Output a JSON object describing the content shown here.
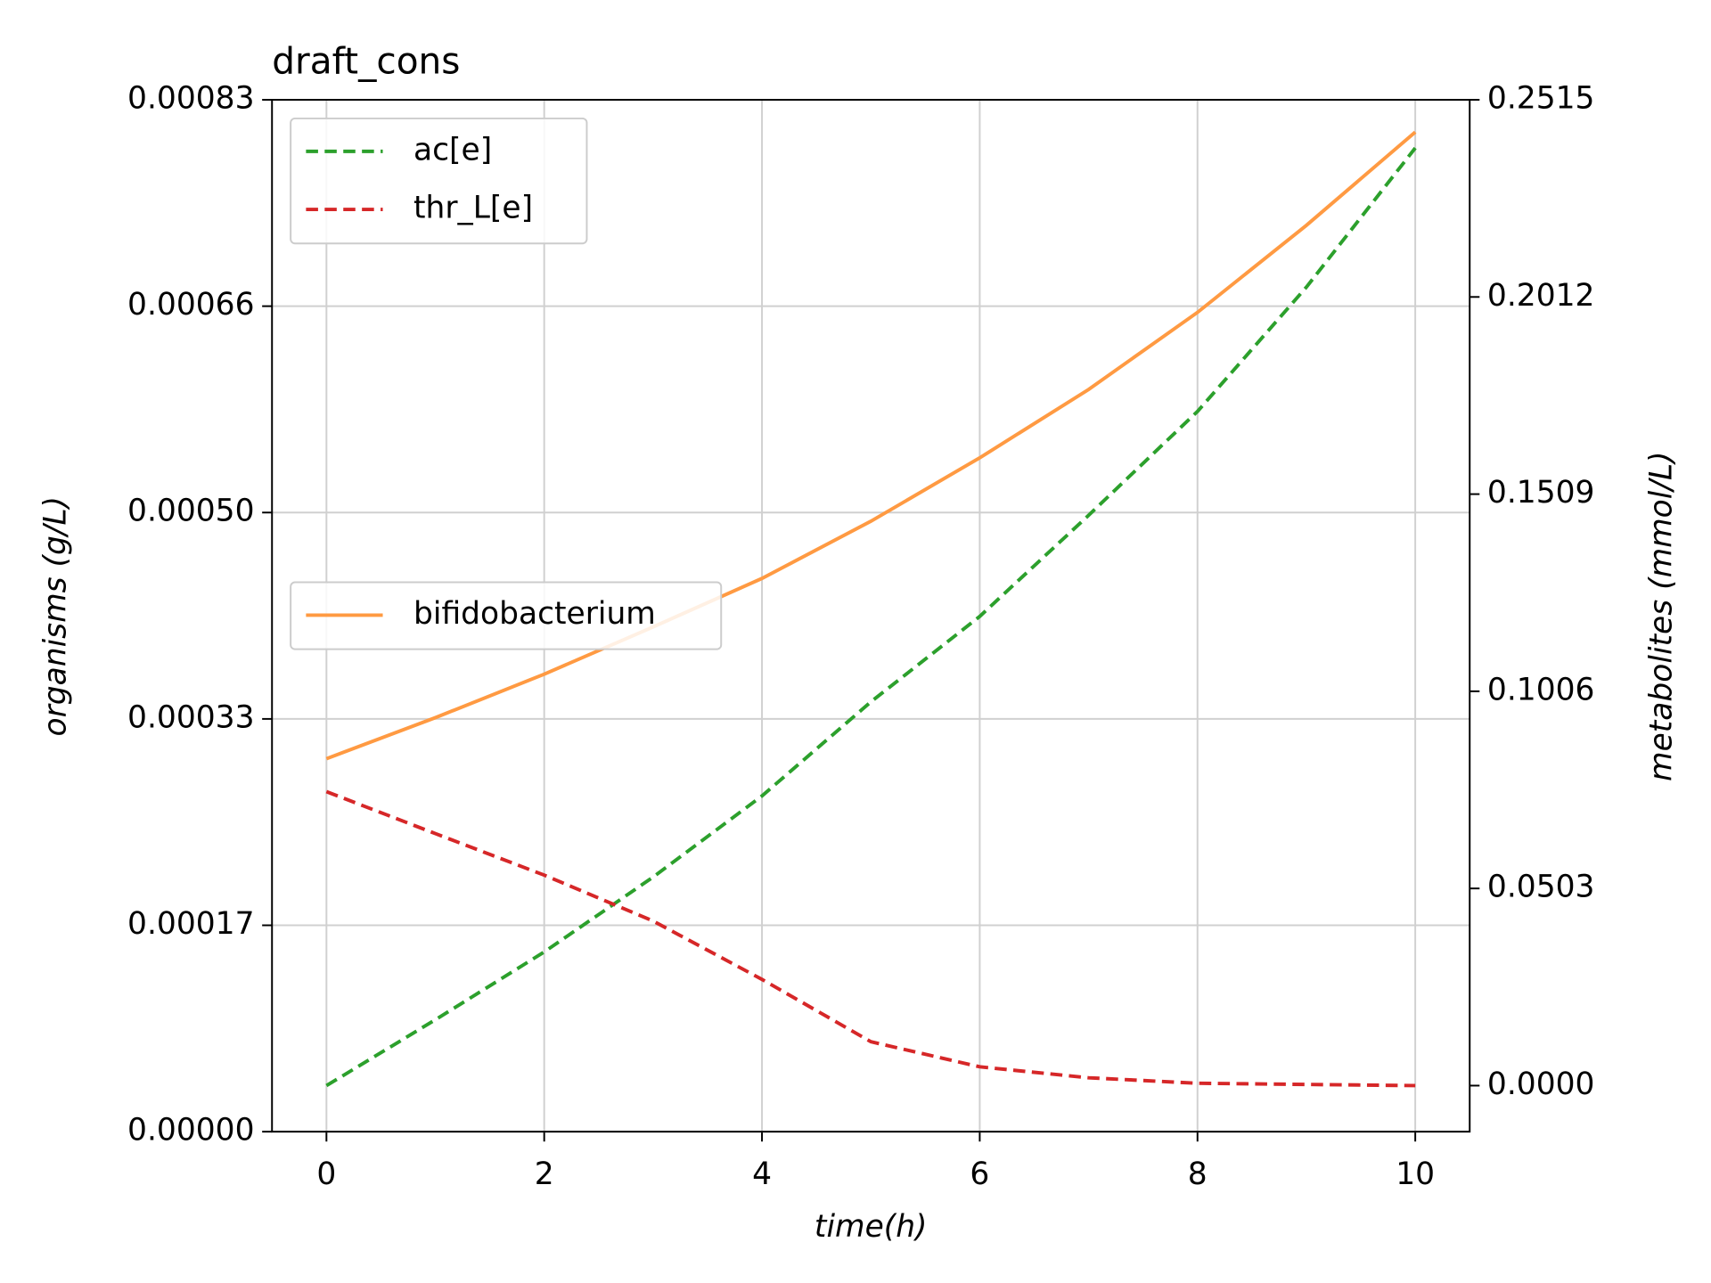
{
  "chart_data": {
    "type": "line",
    "title": "draft_cons",
    "x_label": "time(h)",
    "y_label": "organisms (g/L)",
    "y2_label": "metabolites (mmol/L)",
    "x": [
      0,
      1,
      2,
      3,
      4,
      5,
      6,
      7,
      8,
      9,
      10
    ],
    "xlim": [
      -0.5,
      10.5
    ],
    "xticks": [
      0,
      2,
      4,
      6,
      8,
      10
    ],
    "ylim": [
      0,
      0.00083
    ],
    "yticks": [
      {
        "value": 0,
        "label": "0.00000"
      },
      {
        "value": 0.000166,
        "label": "0.00017"
      },
      {
        "value": 0.000332,
        "label": "0.00033"
      },
      {
        "value": 0.000498,
        "label": "0.00050"
      },
      {
        "value": 0.000664,
        "label": "0.00066"
      },
      {
        "value": 0.00083,
        "label": "0.00083"
      }
    ],
    "y2lim": [
      -0.01175,
      0.2515
    ],
    "y2ticks": [
      {
        "value": 0,
        "label": "0.0000"
      },
      0.0503,
      0.1006,
      0.1509,
      0.2012,
      0.2515
    ],
    "grid": true,
    "series": [
      {
        "name": "bifidobacterium",
        "color": "#ff9a42",
        "dashed": false,
        "axis": "y",
        "values": [
          0.0003,
          0.000333,
          0.000368,
          0.000406,
          0.000445,
          0.000491,
          0.000542,
          0.000597,
          0.000659,
          0.000729,
          0.000804
        ]
      },
      {
        "name": "ac[e]",
        "color": "#2ca02c",
        "dashed": true,
        "axis": "y2",
        "values": [
          0,
          0.0168,
          0.0341,
          0.0532,
          0.0739,
          0.0979,
          0.1197,
          0.1455,
          0.172,
          0.2037,
          0.2392
        ]
      },
      {
        "name": "thr_L[e]",
        "color": "#d62728",
        "dashed": true,
        "axis": "y2",
        "values": [
          0.075,
          0.0643,
          0.0537,
          0.042,
          0.0271,
          0.0112,
          0.0048,
          0.002,
          0.0006,
          0.0003,
          0
        ]
      }
    ]
  }
}
